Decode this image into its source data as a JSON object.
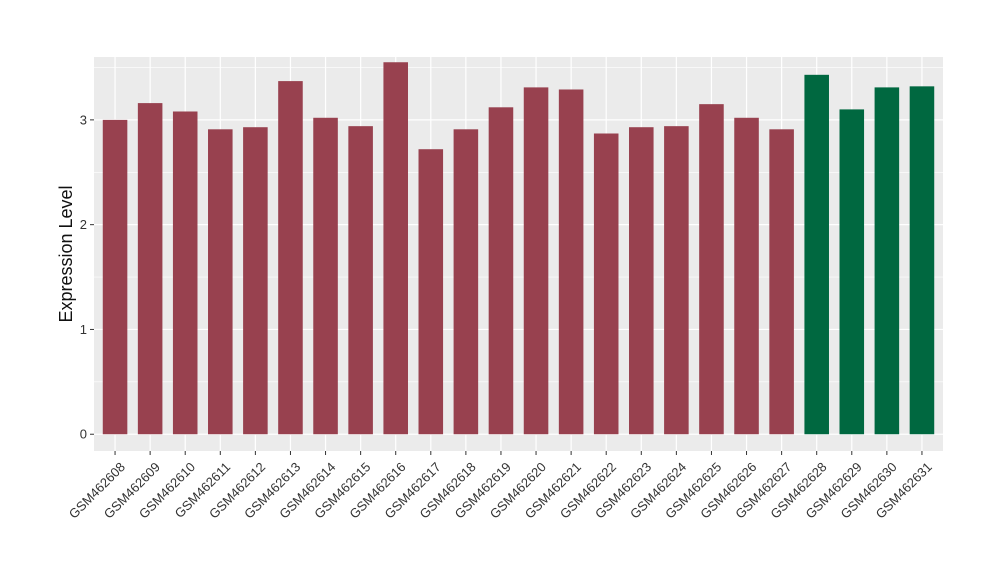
{
  "chart_data": {
    "type": "bar",
    "title": "",
    "xlabel": "",
    "ylabel": "Expression Level",
    "ylim": [
      -0.16,
      3.6
    ],
    "yticks": [
      0,
      1,
      2,
      3
    ],
    "grid": true,
    "legend": "none",
    "colors": {
      "panel": "#ebebeb",
      "grid": "#ffffff",
      "group_a": "#98414f",
      "group_b": "#006840"
    },
    "categories": [
      "GSM462608",
      "GSM462609",
      "GSM462610",
      "GSM462611",
      "GSM462612",
      "GSM462613",
      "GSM462614",
      "GSM462615",
      "GSM462616",
      "GSM462617",
      "GSM462618",
      "GSM462619",
      "GSM462620",
      "GSM462621",
      "GSM462622",
      "GSM462623",
      "GSM462624",
      "GSM462625",
      "GSM462626",
      "GSM462627",
      "GSM462628",
      "GSM462629",
      "GSM462630",
      "GSM462631"
    ],
    "values": [
      3.0,
      3.16,
      3.08,
      2.91,
      2.93,
      3.37,
      3.02,
      2.94,
      3.55,
      2.72,
      2.91,
      3.12,
      3.31,
      3.29,
      2.87,
      2.93,
      2.94,
      3.15,
      3.02,
      2.91,
      3.43,
      3.1,
      3.31,
      3.32
    ],
    "groups": [
      "a",
      "a",
      "a",
      "a",
      "a",
      "a",
      "a",
      "a",
      "a",
      "a",
      "a",
      "a",
      "a",
      "a",
      "a",
      "a",
      "a",
      "a",
      "a",
      "a",
      "b",
      "b",
      "b",
      "b"
    ]
  }
}
